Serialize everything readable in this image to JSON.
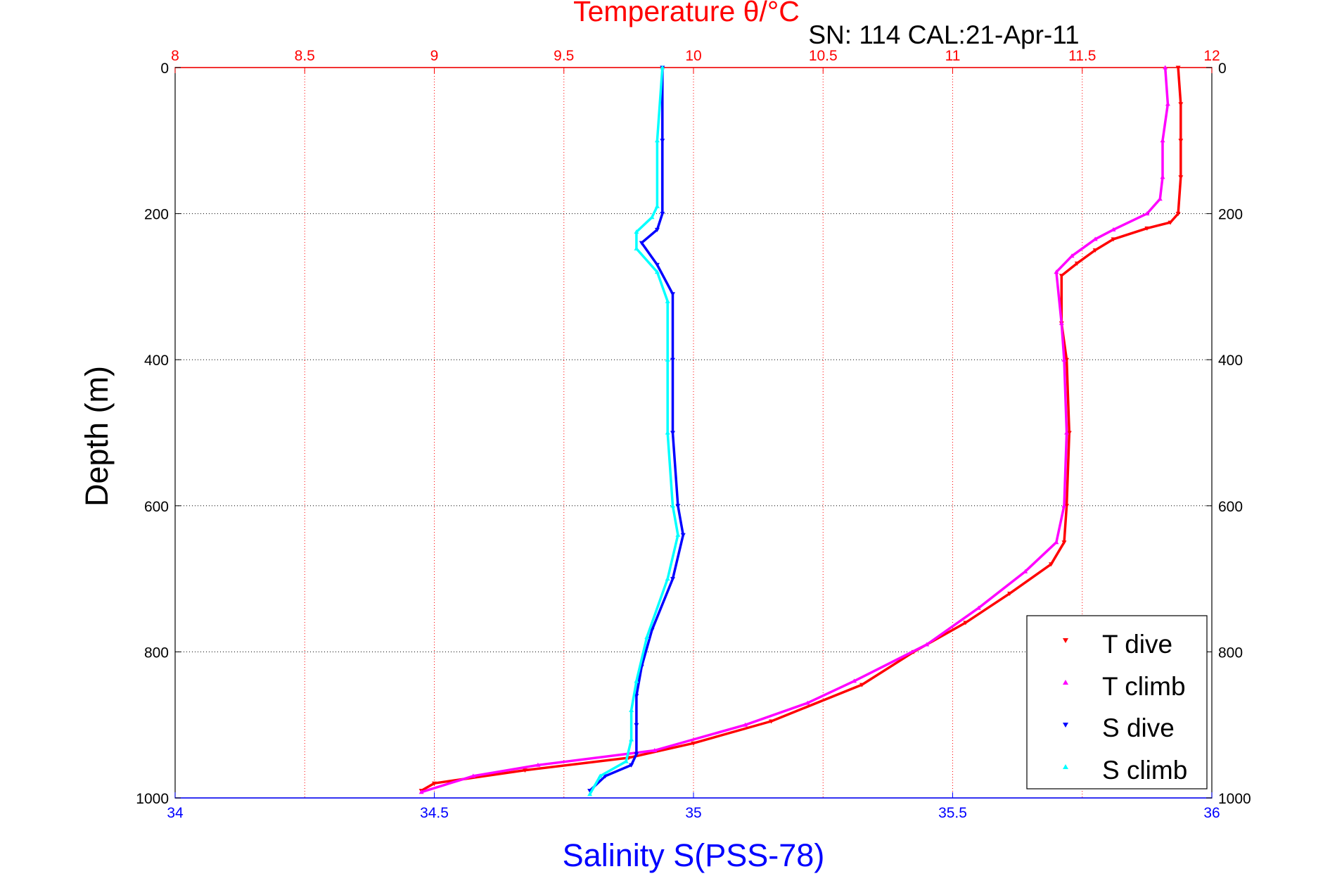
{
  "chart_data": {
    "type": "scatter",
    "title": "Temperature θ/°C",
    "subtitle": "SN: 114  CAL:21-Apr-11",
    "xlabel": "Salinity S(PSS-78)",
    "ylabel": "Depth (m)",
    "x_top": {
      "label": "Temperature θ/°C",
      "lim": [
        8,
        12
      ],
      "ticks": [
        "8",
        "8.5",
        "9",
        "9.5",
        "10",
        "10.5",
        "11",
        "11.5",
        "12"
      ],
      "color": "#ff0000"
    },
    "x_bottom": {
      "label": "Salinity S(PSS-78)",
      "lim": [
        34,
        36
      ],
      "ticks": [
        "34",
        "34.5",
        "35",
        "35.5",
        "36"
      ],
      "color": "#0000ff"
    },
    "y": {
      "lim": [
        0,
        1000
      ],
      "reversed": true,
      "ticks": [
        "0",
        "200",
        "400",
        "600",
        "800",
        "1000"
      ]
    },
    "grid": true,
    "legend_position": "bottom-right",
    "series": [
      {
        "name": "T dive",
        "axis": "temperature",
        "color": "#ff0000",
        "marker": "triangle-down",
        "points": [
          [
            11.87,
            0
          ],
          [
            11.88,
            50
          ],
          [
            11.88,
            100
          ],
          [
            11.88,
            150
          ],
          [
            11.87,
            200
          ],
          [
            11.84,
            212
          ],
          [
            11.75,
            220
          ],
          [
            11.62,
            235
          ],
          [
            11.55,
            250
          ],
          [
            11.48,
            268
          ],
          [
            11.42,
            285
          ],
          [
            11.42,
            350
          ],
          [
            11.44,
            400
          ],
          [
            11.45,
            500
          ],
          [
            11.44,
            600
          ],
          [
            11.43,
            650
          ],
          [
            11.38,
            680
          ],
          [
            11.22,
            720
          ],
          [
            11.05,
            760
          ],
          [
            10.85,
            800
          ],
          [
            10.65,
            845
          ],
          [
            10.3,
            895
          ],
          [
            10.0,
            925
          ],
          [
            9.75,
            945
          ],
          [
            9.35,
            962
          ],
          [
            9.0,
            980
          ],
          [
            8.95,
            990
          ]
        ]
      },
      {
        "name": "T climb",
        "axis": "temperature",
        "color": "#ff00ff",
        "marker": "triangle-up",
        "points": [
          [
            11.82,
            0
          ],
          [
            11.83,
            50
          ],
          [
            11.81,
            100
          ],
          [
            11.81,
            150
          ],
          [
            11.8,
            180
          ],
          [
            11.75,
            200
          ],
          [
            11.62,
            222
          ],
          [
            11.55,
            235
          ],
          [
            11.46,
            258
          ],
          [
            11.4,
            280
          ],
          [
            11.42,
            350
          ],
          [
            11.43,
            400
          ],
          [
            11.44,
            500
          ],
          [
            11.43,
            600
          ],
          [
            11.4,
            650
          ],
          [
            11.28,
            690
          ],
          [
            11.1,
            740
          ],
          [
            10.9,
            790
          ],
          [
            10.62,
            840
          ],
          [
            10.44,
            870
          ],
          [
            10.2,
            900
          ],
          [
            9.85,
            935
          ],
          [
            9.4,
            955
          ],
          [
            9.15,
            970
          ],
          [
            8.95,
            992
          ]
        ]
      },
      {
        "name": "S dive",
        "axis": "salinity",
        "color": "#0000ff",
        "marker": "triangle-down",
        "points": [
          [
            34.94,
            0
          ],
          [
            34.94,
            100
          ],
          [
            34.94,
            200
          ],
          [
            34.93,
            222
          ],
          [
            34.9,
            240
          ],
          [
            34.93,
            270
          ],
          [
            34.96,
            310
          ],
          [
            34.96,
            400
          ],
          [
            34.96,
            500
          ],
          [
            34.97,
            600
          ],
          [
            34.98,
            640
          ],
          [
            34.96,
            700
          ],
          [
            34.92,
            770
          ],
          [
            34.9,
            820
          ],
          [
            34.89,
            860
          ],
          [
            34.89,
            900
          ],
          [
            34.89,
            940
          ],
          [
            34.88,
            955
          ],
          [
            34.83,
            970
          ],
          [
            34.8,
            990
          ]
        ]
      },
      {
        "name": "S climb",
        "axis": "salinity",
        "color": "#00ffff",
        "marker": "triangle-up",
        "points": [
          [
            34.94,
            0
          ],
          [
            34.93,
            100
          ],
          [
            34.93,
            190
          ],
          [
            34.92,
            205
          ],
          [
            34.89,
            225
          ],
          [
            34.89,
            248
          ],
          [
            34.93,
            280
          ],
          [
            34.95,
            320
          ],
          [
            34.95,
            400
          ],
          [
            34.95,
            500
          ],
          [
            34.96,
            600
          ],
          [
            34.97,
            640
          ],
          [
            34.95,
            700
          ],
          [
            34.91,
            780
          ],
          [
            34.89,
            840
          ],
          [
            34.88,
            880
          ],
          [
            34.88,
            920
          ],
          [
            34.87,
            950
          ],
          [
            34.82,
            970
          ],
          [
            34.8,
            995
          ]
        ]
      }
    ]
  }
}
